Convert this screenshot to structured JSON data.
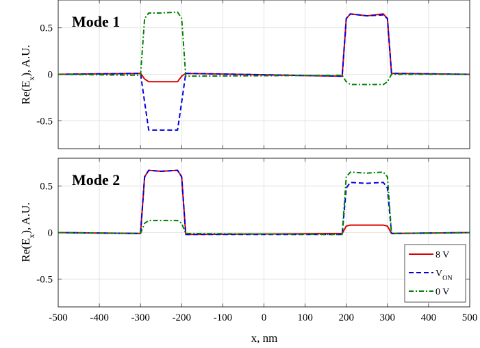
{
  "chart_data": [
    {
      "type": "line",
      "title": "Mode 1",
      "xlabel": "",
      "ylabel": "Re(E_x), A.U.",
      "xlim": [
        -500,
        500
      ],
      "ylim": [
        -0.8,
        0.8
      ],
      "yticks": [
        0.5,
        0,
        -0.5
      ],
      "ytick_labels": [
        "0.5",
        "0",
        "-0.5"
      ],
      "grid": true,
      "x": [
        -500,
        -300,
        -290,
        -280,
        -250,
        -210,
        -200,
        -190,
        190,
        200,
        210,
        250,
        290,
        300,
        310,
        500
      ],
      "series": [
        {
          "name": "8 V",
          "color": "#dd0000",
          "dash": "solid",
          "values": [
            0,
            0.01,
            -0.05,
            -0.08,
            -0.08,
            -0.08,
            -0.02,
            0.01,
            -0.02,
            0.6,
            0.65,
            0.63,
            0.65,
            0.6,
            0.01,
            0
          ]
        },
        {
          "name": "V_ON",
          "color": "#0000dd",
          "dash": "dashed",
          "values": [
            0,
            0.01,
            -0.3,
            -0.6,
            -0.6,
            -0.6,
            -0.3,
            0.01,
            -0.02,
            0.6,
            0.65,
            0.63,
            0.64,
            0.6,
            0.01,
            0
          ]
        },
        {
          "name": "0 V",
          "color": "#008000",
          "dash": "dashdot",
          "values": [
            0,
            -0.01,
            0.6,
            0.66,
            0.66,
            0.67,
            0.6,
            -0.02,
            -0.01,
            -0.08,
            -0.11,
            -0.11,
            -0.11,
            -0.08,
            0,
            0
          ]
        }
      ]
    },
    {
      "type": "line",
      "title": "Mode 2",
      "xlabel": "x, nm",
      "ylabel": "Re(E_x), A.U.",
      "xlim": [
        -500,
        500
      ],
      "ylim": [
        -0.8,
        0.8
      ],
      "xticks": [
        -500,
        -400,
        -300,
        -200,
        -100,
        0,
        100,
        200,
        300,
        400,
        500
      ],
      "xtick_labels": [
        "-500",
        "-400",
        "-300",
        "-200",
        "-100",
        "0",
        "100",
        "200",
        "300",
        "400",
        "500"
      ],
      "yticks": [
        0.5,
        0,
        -0.5
      ],
      "ytick_labels": [
        "0.5",
        "0",
        "-0.5"
      ],
      "grid": true,
      "legend_position": "bottom-right",
      "legend": [
        {
          "main": "8 V",
          "sub": ""
        },
        {
          "main": "V",
          "sub": "ON"
        },
        {
          "main": "0 V",
          "sub": ""
        }
      ],
      "x": [
        -500,
        -300,
        -290,
        -280,
        -250,
        -210,
        -200,
        -190,
        190,
        200,
        210,
        250,
        290,
        300,
        310,
        500
      ],
      "series": [
        {
          "name": "8 V",
          "color": "#dd0000",
          "dash": "solid",
          "values": [
            0,
            -0.01,
            0.6,
            0.67,
            0.66,
            0.67,
            0.6,
            -0.02,
            -0.01,
            0.07,
            0.08,
            0.08,
            0.08,
            0.07,
            -0.01,
            0
          ]
        },
        {
          "name": "V_ON",
          "color": "#0000dd",
          "dash": "dashed",
          "values": [
            0,
            -0.01,
            0.6,
            0.67,
            0.66,
            0.67,
            0.6,
            -0.02,
            -0.02,
            0.48,
            0.54,
            0.53,
            0.54,
            0.48,
            -0.01,
            0
          ]
        },
        {
          "name": "0 V",
          "color": "#008000",
          "dash": "dashdot",
          "values": [
            0,
            -0.01,
            0.1,
            0.13,
            0.13,
            0.13,
            0.1,
            -0.01,
            -0.02,
            0.6,
            0.65,
            0.64,
            0.65,
            0.6,
            -0.01,
            0
          ]
        }
      ]
    }
  ]
}
